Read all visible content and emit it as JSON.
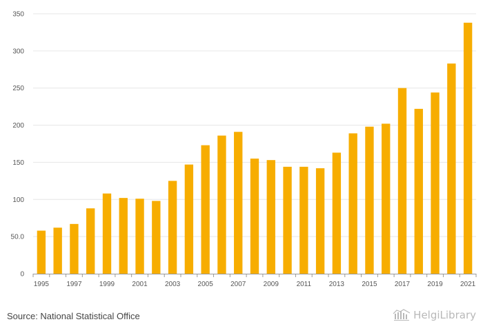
{
  "chart_data": {
    "type": "bar",
    "title": "",
    "xlabel": "",
    "ylabel": "",
    "ylim": [
      0,
      350
    ],
    "yticks": [
      {
        "value": 0,
        "label": "0"
      },
      {
        "value": 50,
        "label": "50.0"
      },
      {
        "value": 100,
        "label": "100"
      },
      {
        "value": 150,
        "label": "150"
      },
      {
        "value": 200,
        "label": "200"
      },
      {
        "value": 250,
        "label": "250"
      },
      {
        "value": 300,
        "label": "300"
      },
      {
        "value": 350,
        "label": "350"
      }
    ],
    "xtick_labels": [
      "1995",
      "1997",
      "1999",
      "2001",
      "2003",
      "2005",
      "2007",
      "2009",
      "2011",
      "2013",
      "2015",
      "2017",
      "2019",
      "2021"
    ],
    "categories": [
      "1995",
      "1996",
      "1997",
      "1998",
      "1999",
      "2000",
      "2001",
      "2002",
      "2003",
      "2004",
      "2005",
      "2006",
      "2007",
      "2008",
      "2009",
      "2010",
      "2011",
      "2012",
      "2013",
      "2014",
      "2015",
      "2016",
      "2017",
      "2018",
      "2019",
      "2020",
      "2021"
    ],
    "values": [
      58,
      62,
      67,
      88,
      108,
      102,
      101,
      98,
      125,
      147,
      173,
      186,
      191,
      155,
      153,
      144,
      144,
      142,
      163,
      189,
      198,
      202,
      250,
      222,
      244,
      283,
      338
    ],
    "bar_color": "#f7ad00",
    "grid": true,
    "legend": "none"
  },
  "footer": {
    "source": "Source: National Statistical Office",
    "logo_text": "HelgiLibrary"
  },
  "colors": {
    "grid": "#e6e6e6",
    "axis": "#999999",
    "logo": "#b8b8b8"
  }
}
